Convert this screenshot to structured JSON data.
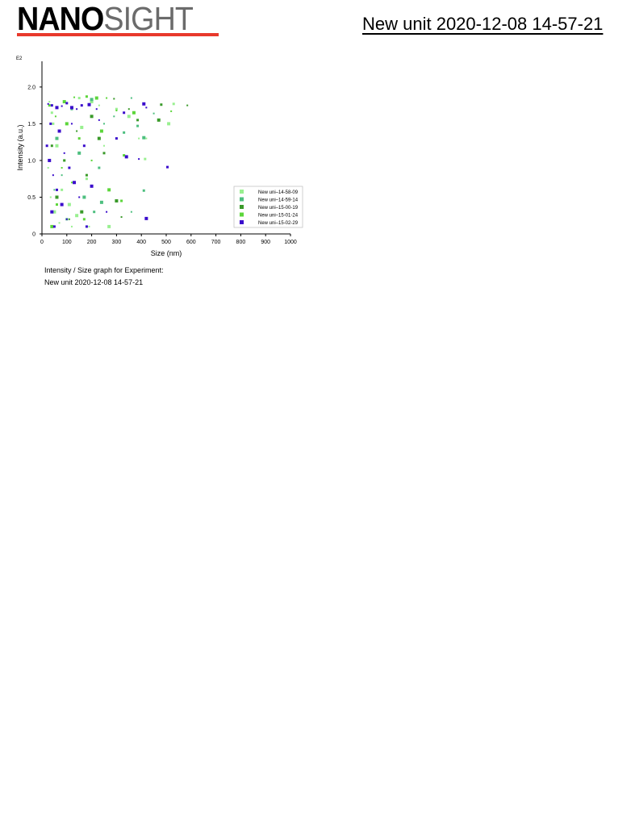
{
  "header": {
    "logo_bold": "NANO",
    "logo_light": "SIGHT",
    "logo_accent": "#e8392c",
    "title": "New unit 2020-12-08 14-57-21"
  },
  "caption": {
    "line1": "Intensity / Size graph for Experiment:",
    "line2": "New unit 2020-12-08 14-57-21"
  },
  "chart_data": {
    "type": "scatter",
    "title": "",
    "xlabel": "Size (nm)",
    "ylabel": "Intensity (a.u.)",
    "y_multiplier": "E2",
    "xlim": [
      0,
      1000
    ],
    "ylim": [
      0,
      2.35
    ],
    "x_ticks": [
      "0",
      "100",
      "200",
      "300",
      "400",
      "500",
      "600",
      "700",
      "800",
      "900",
      "1000"
    ],
    "y_ticks": [
      "0",
      "0.5",
      "1.0",
      "1.5",
      "2.0"
    ],
    "grid": false,
    "legend_position": "bottom-right",
    "series": [
      {
        "name": "New uni–14-58-09",
        "color": "#99f090",
        "points": [
          [
            30,
            1.8
          ],
          [
            45,
            1.5
          ],
          [
            60,
            1.2
          ],
          [
            25,
            0.9
          ],
          [
            80,
            0.6
          ],
          [
            50,
            0.3
          ],
          [
            120,
            0.1
          ],
          [
            150,
            1.85
          ],
          [
            200,
            1.8
          ],
          [
            230,
            1.75
          ],
          [
            300,
            1.7
          ],
          [
            350,
            1.6
          ],
          [
            420,
            1.3
          ],
          [
            530,
            1.77
          ],
          [
            510,
            1.5
          ],
          [
            390,
            1.3
          ],
          [
            415,
            1.02
          ],
          [
            270,
            0.1
          ],
          [
            190,
            0.1
          ],
          [
            90,
            1.0
          ],
          [
            110,
            0.4
          ],
          [
            70,
            0.15
          ],
          [
            40,
            1.65
          ],
          [
            160,
            1.45
          ],
          [
            250,
            1.2
          ],
          [
            180,
            0.75
          ],
          [
            140,
            0.25
          ],
          [
            35,
            0.5
          ]
        ]
      },
      {
        "name": "New uni–14-59-14",
        "color": "#4dbf7f",
        "points": [
          [
            360,
            1.85
          ],
          [
            385,
            1.47
          ],
          [
            410,
            1.31
          ],
          [
            450,
            1.64
          ],
          [
            230,
            0.9
          ],
          [
            240,
            0.43
          ],
          [
            360,
            0.3
          ],
          [
            410,
            0.59
          ],
          [
            200,
            1.83
          ],
          [
            290,
            1.6
          ],
          [
            120,
            1.7
          ],
          [
            60,
            1.3
          ],
          [
            80,
            0.8
          ],
          [
            100,
            0.2
          ],
          [
            150,
            1.1
          ],
          [
            250,
            1.5
          ],
          [
            330,
            1.38
          ],
          [
            170,
            0.5
          ],
          [
            50,
            0.6
          ],
          [
            210,
            0.3
          ]
        ]
      },
      {
        "name": "New uni–15-00-19",
        "color": "#3a9a2a",
        "points": [
          [
            290,
            1.84
          ],
          [
            385,
            1.55
          ],
          [
            470,
            1.55
          ],
          [
            585,
            1.75
          ],
          [
            480,
            1.76
          ],
          [
            300,
            0.45
          ],
          [
            320,
            0.23
          ],
          [
            250,
            1.1
          ],
          [
            200,
            1.6
          ],
          [
            140,
            1.4
          ],
          [
            90,
            1.0
          ],
          [
            60,
            0.5
          ],
          [
            110,
            0.2
          ],
          [
            180,
            0.8
          ],
          [
            230,
            1.3
          ],
          [
            350,
            1.7
          ],
          [
            40,
            1.2
          ],
          [
            160,
            0.3
          ]
        ]
      },
      {
        "name": "New uni–15-01-24",
        "color": "#5cd63a",
        "points": [
          [
            130,
            1.86
          ],
          [
            180,
            1.87
          ],
          [
            220,
            1.85
          ],
          [
            260,
            1.85
          ],
          [
            330,
            1.07
          ],
          [
            370,
            1.65
          ],
          [
            520,
            1.67
          ],
          [
            320,
            0.45
          ],
          [
            270,
            0.6
          ],
          [
            200,
            1.0
          ],
          [
            150,
            1.3
          ],
          [
            100,
            1.5
          ],
          [
            80,
            0.9
          ],
          [
            60,
            0.4
          ],
          [
            40,
            0.1
          ],
          [
            120,
            0.7
          ],
          [
            170,
            0.2
          ],
          [
            240,
            1.4
          ],
          [
            300,
            1.68
          ],
          [
            30,
            1.75
          ],
          [
            90,
            1.8
          ],
          [
            55,
            1.6
          ]
        ]
      },
      {
        "name": "New uni–15-02-29",
        "color": "#3a0ccc",
        "points": [
          [
            25,
            1.77
          ],
          [
            40,
            1.75
          ],
          [
            60,
            1.72
          ],
          [
            80,
            1.74
          ],
          [
            100,
            1.78
          ],
          [
            120,
            1.72
          ],
          [
            140,
            1.7
          ],
          [
            160,
            1.75
          ],
          [
            190,
            1.76
          ],
          [
            220,
            1.7
          ],
          [
            330,
            1.65
          ],
          [
            410,
            1.77
          ],
          [
            420,
            1.72
          ],
          [
            505,
            0.91
          ],
          [
            420,
            0.21
          ],
          [
            260,
            0.3
          ],
          [
            300,
            1.3
          ],
          [
            340,
            1.05
          ],
          [
            390,
            1.02
          ],
          [
            20,
            1.2
          ],
          [
            30,
            1.0
          ],
          [
            45,
            0.8
          ],
          [
            60,
            0.6
          ],
          [
            80,
            0.4
          ],
          [
            100,
            0.2
          ],
          [
            50,
            0.1
          ],
          [
            70,
            1.4
          ],
          [
            90,
            1.1
          ],
          [
            110,
            0.9
          ],
          [
            130,
            0.7
          ],
          [
            150,
            0.5
          ],
          [
            170,
            1.2
          ],
          [
            40,
            0.3
          ],
          [
            120,
            1.5
          ],
          [
            35,
            1.5
          ],
          [
            200,
            0.65
          ],
          [
            230,
            1.55
          ],
          [
            180,
            0.1
          ]
        ]
      }
    ]
  }
}
